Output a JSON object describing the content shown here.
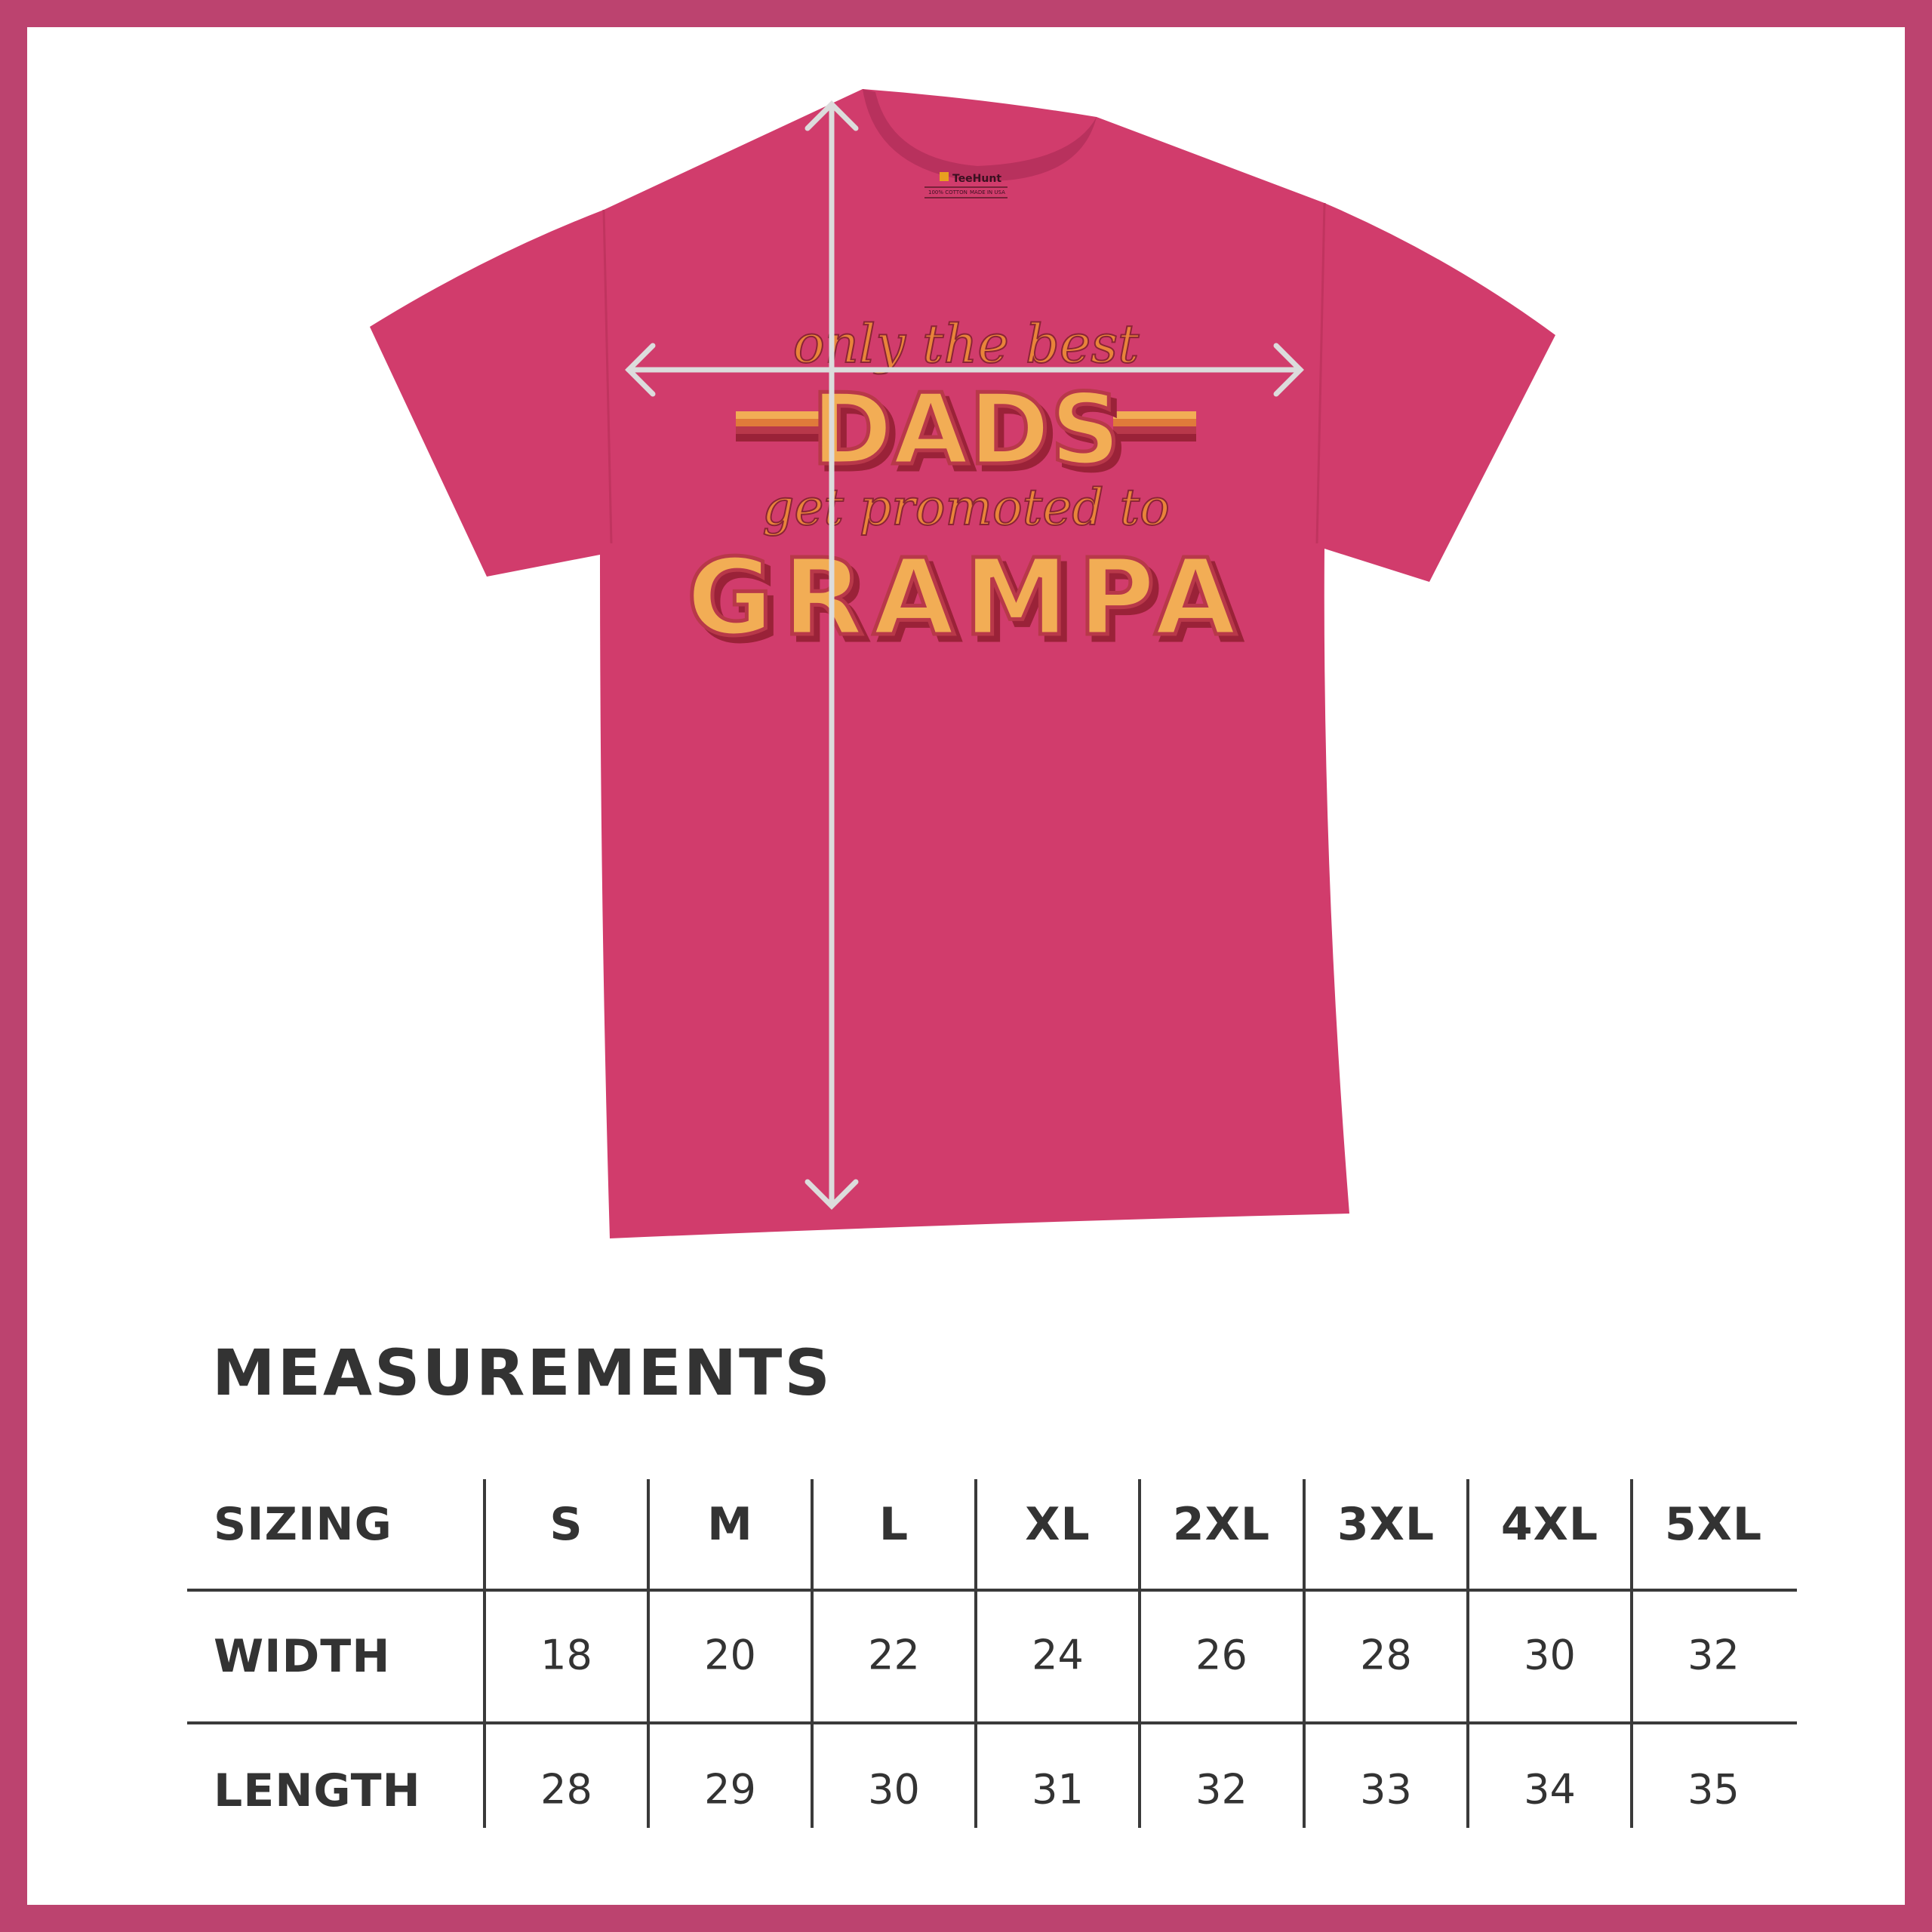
{
  "colors": {
    "border": "#bc436f",
    "shirt": "#d13c6c",
    "text": "#333333",
    "design_orange": "#e8843a",
    "design_light": "#f2ad55",
    "design_dark": "#9a2238"
  },
  "shirt": {
    "label": {
      "brand": "TeeHunt",
      "material": "100% COTTON",
      "origin": "MADE IN USA"
    },
    "design": {
      "line1": "only the best",
      "line2": "DADS",
      "line3": "get promoted to",
      "line4": "GRAMPA"
    },
    "icons": [
      "width-arrow-icon",
      "length-arrow-icon"
    ]
  },
  "measurements": {
    "title": "MEASUREMENTS",
    "header_label": "SIZING",
    "sizes": [
      "S",
      "M",
      "L",
      "XL",
      "2XL",
      "3XL",
      "4XL",
      "5XL"
    ],
    "rows": [
      {
        "label": "WIDTH",
        "values": [
          "18",
          "20",
          "22",
          "24",
          "26",
          "28",
          "30",
          "32"
        ]
      },
      {
        "label": "LENGTH",
        "values": [
          "28",
          "29",
          "30",
          "31",
          "32",
          "33",
          "34",
          "35"
        ]
      }
    ]
  }
}
